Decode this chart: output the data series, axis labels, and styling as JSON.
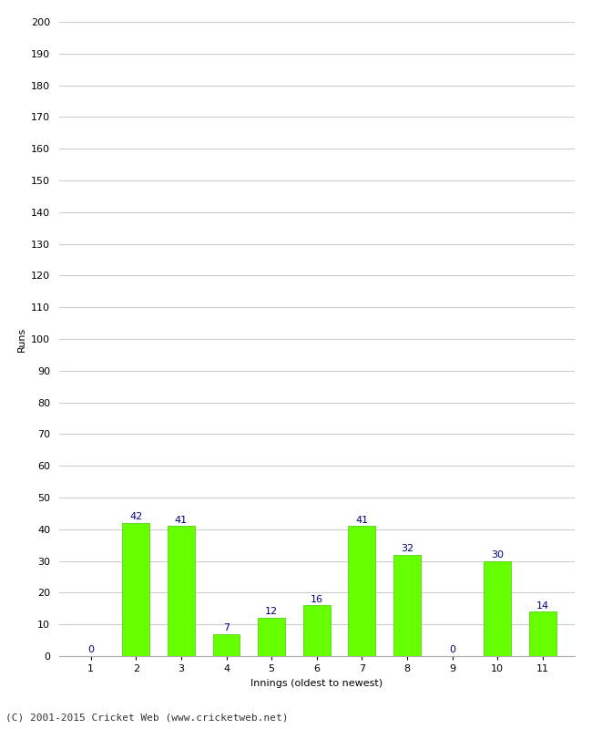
{
  "categories": [
    "1",
    "2",
    "3",
    "4",
    "5",
    "6",
    "7",
    "8",
    "9",
    "10",
    "11"
  ],
  "values": [
    0,
    42,
    41,
    7,
    12,
    16,
    41,
    32,
    0,
    30,
    14
  ],
  "bar_color": "#66ff00",
  "bar_edge_color": "#44cc00",
  "label_color": "#000080",
  "xlabel": "Innings (oldest to newest)",
  "ylabel": "Runs",
  "ylim": [
    0,
    200
  ],
  "ytick_step": 10,
  "background_color": "#ffffff",
  "grid_color": "#cccccc",
  "footer_text": "(C) 2001-2015 Cricket Web (www.cricketweb.net)",
  "label_fontsize": 8,
  "axis_fontsize": 8,
  "footer_fontsize": 8,
  "bar_width": 0.6
}
